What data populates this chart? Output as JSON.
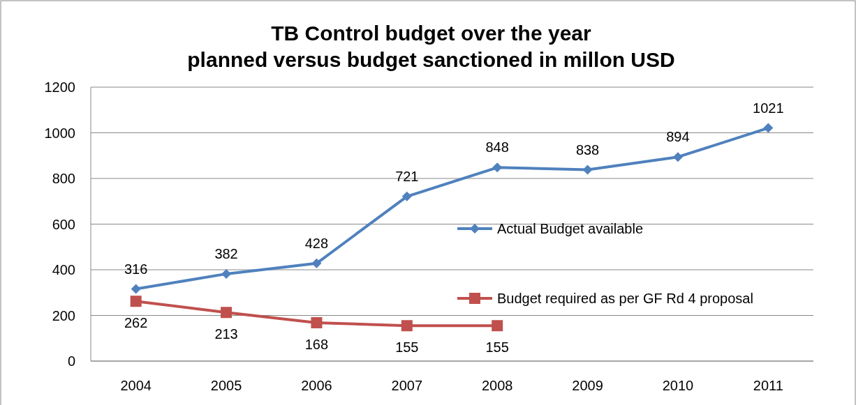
{
  "chart_data": {
    "type": "line",
    "title": "TB Control budget over the year\nplanned versus budget sanctioned in millon USD",
    "categories": [
      "2004",
      "2005",
      "2006",
      "2007",
      "2008",
      "2009",
      "2010",
      "2011"
    ],
    "series": [
      {
        "name": "Actual Budget available",
        "color": "#4f81bd",
        "marker": "diamond",
        "values": [
          316,
          382,
          428,
          721,
          848,
          838,
          894,
          1021
        ]
      },
      {
        "name": "Budget required as per GF Rd 4 proposal",
        "color": "#c0504d",
        "marker": "square",
        "values": [
          262,
          213,
          168,
          155,
          155,
          null,
          null,
          null
        ]
      }
    ],
    "ylim": [
      0,
      1200
    ],
    "yticks": [
      0,
      200,
      400,
      600,
      800,
      1000,
      1200
    ],
    "grid": "y",
    "legend": "right",
    "data_labels": true,
    "line_style": "solid"
  }
}
